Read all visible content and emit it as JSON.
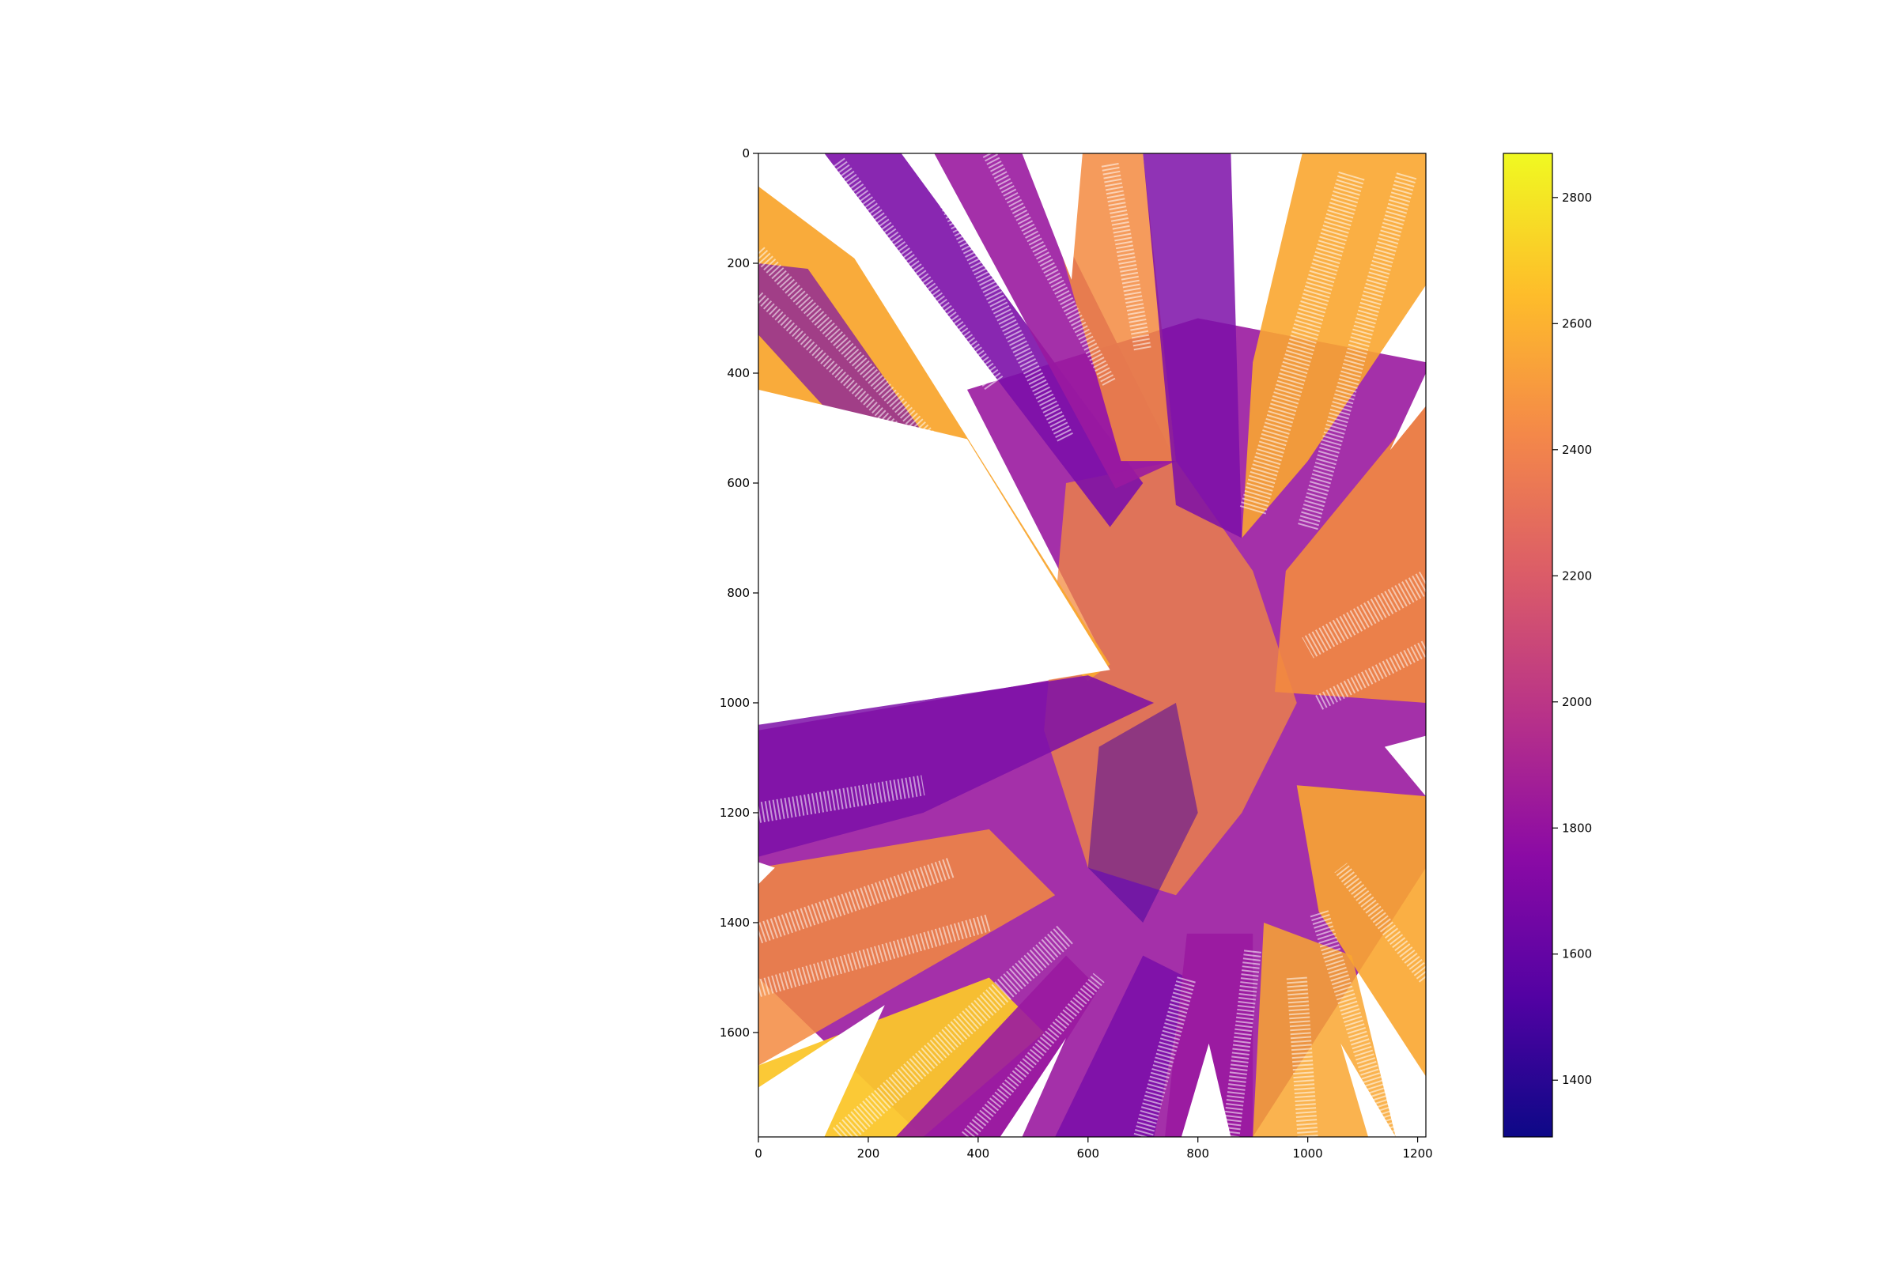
{
  "chart_data": {
    "type": "heatmap",
    "title": "",
    "xlabel": "",
    "ylabel": "",
    "image_shape": [
      1790,
      1215
    ],
    "x_ticks": [
      0,
      200,
      400,
      600,
      800,
      1000,
      1200
    ],
    "y_ticks": [
      0,
      200,
      400,
      600,
      800,
      1000,
      1200,
      1400,
      1600
    ],
    "xlim": [
      0,
      1215
    ],
    "ylim": [
      1790,
      0
    ],
    "y_inverted": true,
    "colormap": "plasma",
    "colorbar": {
      "range": [
        1310,
        2870
      ],
      "ticks": [
        1400,
        1600,
        1800,
        2000,
        2200,
        2400,
        2600,
        2800
      ],
      "placement": "right"
    },
    "colormap_stops": [
      "#0d0887",
      "#5302a3",
      "#8b0aa5",
      "#b83289",
      "#db5c68",
      "#f48849",
      "#febd2a",
      "#f0f921"
    ],
    "no_data_color": "#ffffff",
    "grid": false
  }
}
